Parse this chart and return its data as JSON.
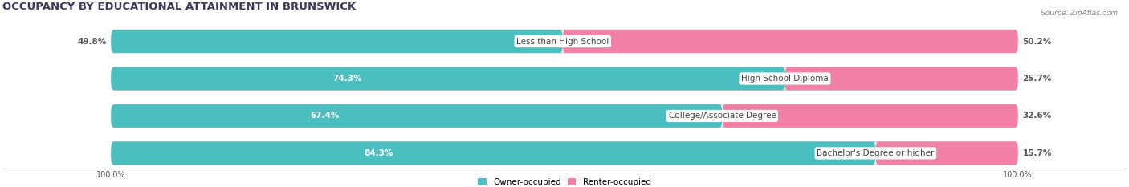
{
  "title": "OCCUPANCY BY EDUCATIONAL ATTAINMENT IN BRUNSWICK",
  "source": "Source: ZipAtlas.com",
  "categories": [
    "Less than High School",
    "High School Diploma",
    "College/Associate Degree",
    "Bachelor's Degree or higher"
  ],
  "owner_values": [
    49.8,
    74.3,
    67.4,
    84.3
  ],
  "renter_values": [
    50.2,
    25.7,
    32.6,
    15.7
  ],
  "owner_color": "#4bbfbf",
  "renter_color": "#f281a5",
  "bar_bg_color": "#e8e8e8",
  "bar_shadow_color": "#d0d0d0",
  "owner_label": "Owner-occupied",
  "renter_label": "Renter-occupied",
  "title_fontsize": 9.5,
  "label_fontsize": 7.5,
  "cat_fontsize": 7.5,
  "bar_height": 0.62,
  "figsize": [
    14.06,
    2.33
  ],
  "dpi": 100,
  "axis_label_left": "100.0%",
  "axis_label_right": "100.0%",
  "title_color": "#3a3a5c",
  "source_color": "#888888",
  "value_text_color_owner_inside": "#ffffff",
  "value_text_color_owner_outside": "#555555",
  "value_text_color_renter": "#555555",
  "category_text_color": "#444444",
  "bg_color": "#ffffff"
}
